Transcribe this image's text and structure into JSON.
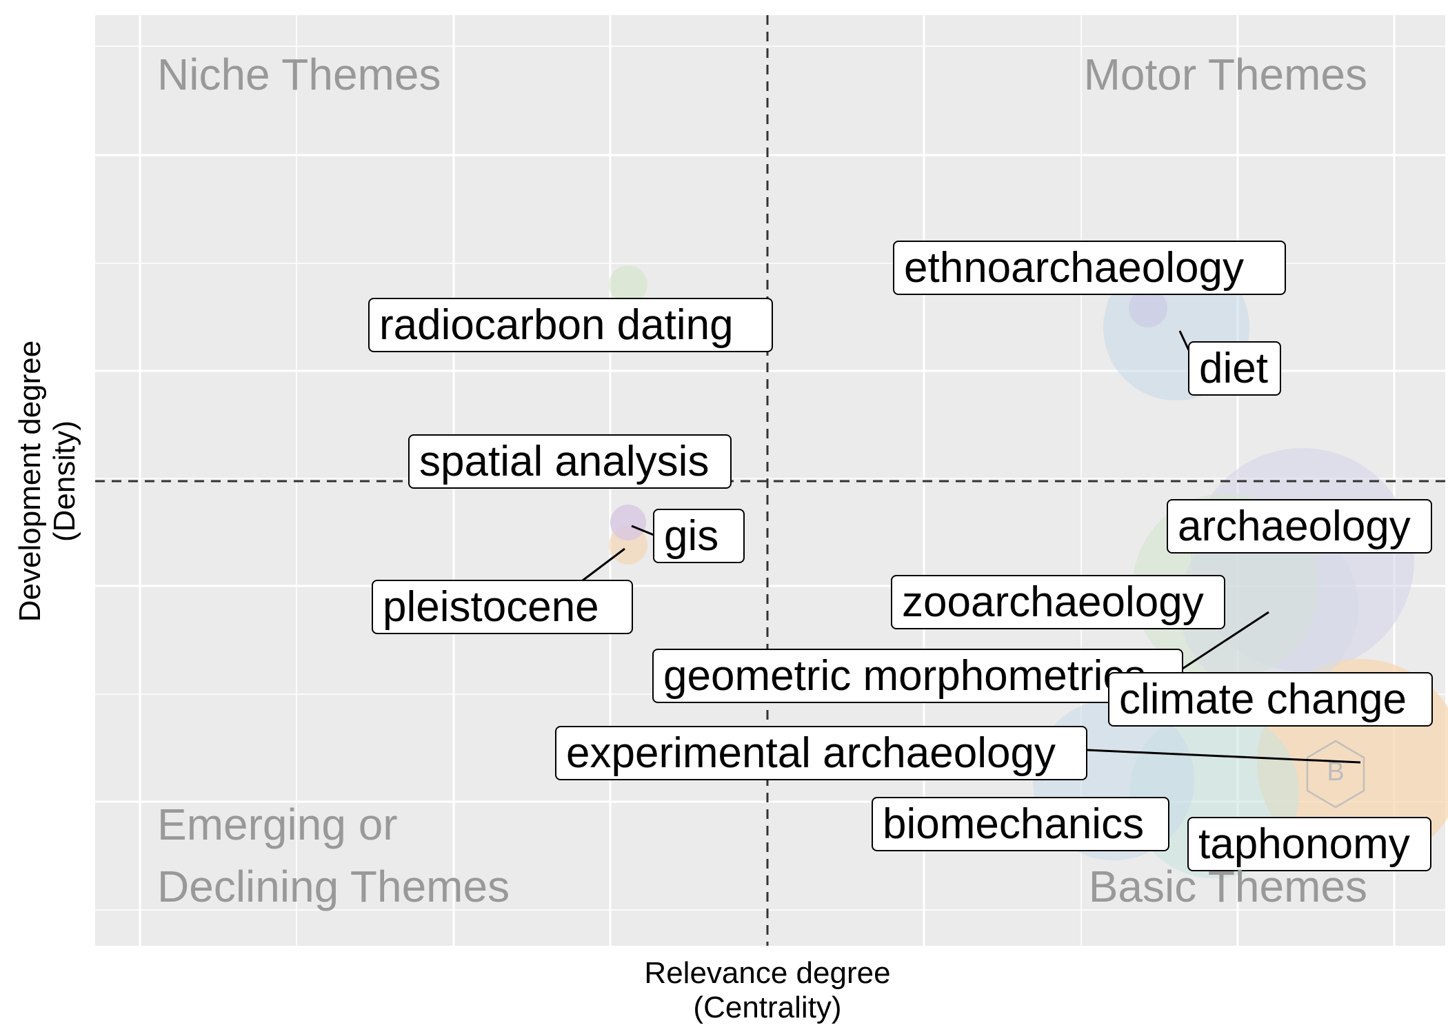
{
  "chart_data": {
    "type": "scatter",
    "title": "",
    "xlabel": [
      "Relevance degree",
      "(Centrality)"
    ],
    "ylabel": [
      "Development degree",
      "(Density)"
    ],
    "axis_ticks_shown": false,
    "grid": true,
    "reference_lines": "dashed lines at median centrality and median density",
    "quadrants": {
      "top_left": [
        "Niche Themes"
      ],
      "top_right": [
        "Motor Themes"
      ],
      "bottom_left": [
        "Emerging or",
        "Declining Themes"
      ],
      "bottom_right": [
        "Basic Themes"
      ]
    },
    "themes": [
      {
        "label": "ethnoarchaeology",
        "color": "#c8c6e4"
      },
      {
        "label": "diet",
        "color": "#c6d8e8"
      },
      {
        "label": "radiocarbon dating",
        "color": "#cfe6c3"
      },
      {
        "label": "spatial analysis",
        "color": "#d9c6e2"
      },
      {
        "label": "gis",
        "color": "#d9c6e2"
      },
      {
        "label": "pleistocene",
        "color": "#f6d1a8"
      },
      {
        "label": "archaeology",
        "color": "#d4d2ea"
      },
      {
        "label": "zooarchaeology",
        "color": "#d3e5cc"
      },
      {
        "label": "geometric morphometrics",
        "color": "#d5dbe6"
      },
      {
        "label": "climate change",
        "color": "#f6d9b7"
      },
      {
        "label": "experimental archaeology",
        "color": "#f6d9b7"
      },
      {
        "label": "biomechanics",
        "color": "#c9dae9"
      },
      {
        "label": "taphonomy",
        "color": "#c7e3de"
      }
    ]
  },
  "colors": {
    "panel_background": "#ebebeb",
    "grid": "#ffffff",
    "quadrant_text": "#999999",
    "reference_line": "#333333"
  },
  "watermark_icon": "bibliometrix-logo-icon"
}
